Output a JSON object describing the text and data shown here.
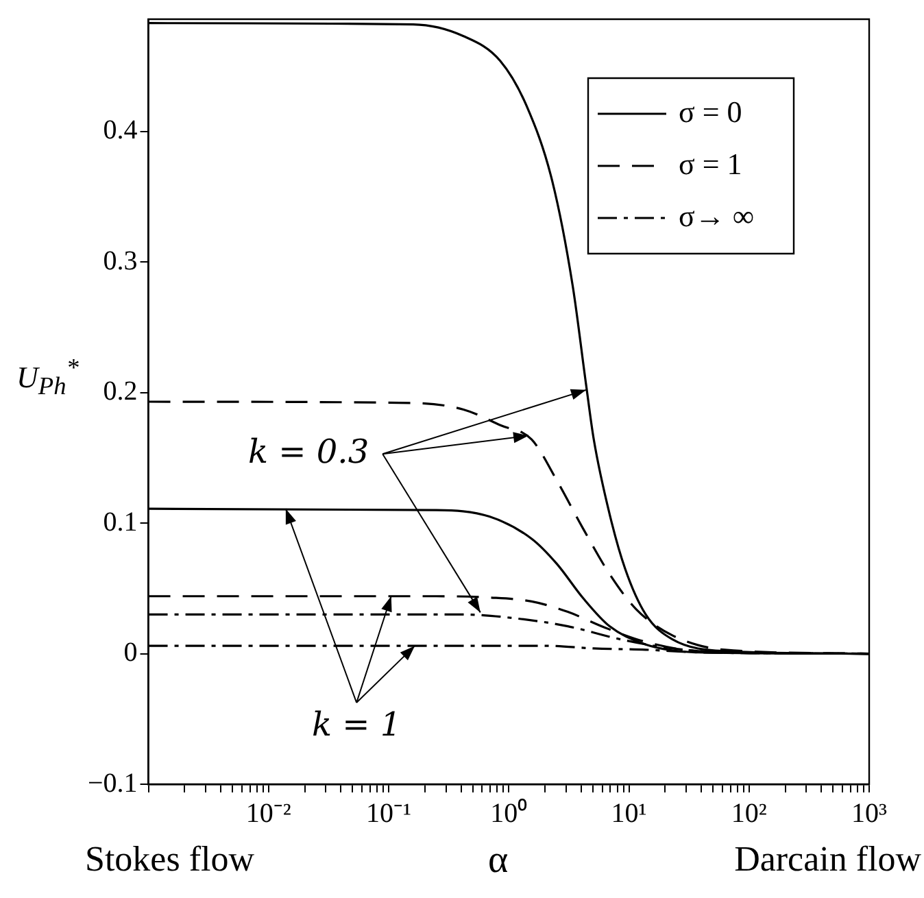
{
  "chart_data": {
    "type": "line",
    "xlabel": "α",
    "ylabel": "U$_{Ph}$$^{*}$",
    "log": "x",
    "xlim": [
      0.001,
      1000
    ],
    "xticks": [
      {
        "value": 0.001,
        "label": null
      },
      {
        "value": 0.002,
        "label": null
      },
      {
        "value": 0.003,
        "label": null
      },
      {
        "value": 0.004,
        "label": null
      },
      {
        "value": 0.005,
        "label": null
      },
      {
        "value": 0.006,
        "label": null
      },
      {
        "value": 0.007,
        "label": null
      },
      {
        "value": 0.008,
        "label": null
      },
      {
        "value": 0.009,
        "label": null
      },
      {
        "value": 0.01,
        "label": "10⁻²"
      },
      {
        "value": 0.02,
        "label": null
      },
      {
        "value": 0.03,
        "label": null
      },
      {
        "value": 0.04,
        "label": null
      },
      {
        "value": 0.05,
        "label": null
      },
      {
        "value": 0.06,
        "label": null
      },
      {
        "value": 0.07,
        "label": null
      },
      {
        "value": 0.08,
        "label": null
      },
      {
        "value": 0.09,
        "label": null
      },
      {
        "value": 0.1,
        "label": "10⁻¹"
      },
      {
        "value": 0.2,
        "label": null
      },
      {
        "value": 0.3,
        "label": null
      },
      {
        "value": 0.4,
        "label": null
      },
      {
        "value": 0.5,
        "label": null
      },
      {
        "value": 0.6,
        "label": null
      },
      {
        "value": 0.7,
        "label": null
      },
      {
        "value": 0.8,
        "label": null
      },
      {
        "value": 0.9,
        "label": null
      },
      {
        "value": 1,
        "label": "10⁰"
      },
      {
        "value": 2,
        "label": null
      },
      {
        "value": 3,
        "label": null
      },
      {
        "value": 4,
        "label": null
      },
      {
        "value": 5,
        "label": null
      },
      {
        "value": 6,
        "label": null
      },
      {
        "value": 7,
        "label": null
      },
      {
        "value": 8,
        "label": null
      },
      {
        "value": 9,
        "label": null
      },
      {
        "value": 10,
        "label": "10¹"
      },
      {
        "value": 20,
        "label": null
      },
      {
        "value": 30,
        "label": null
      },
      {
        "value": 40,
        "label": null
      },
      {
        "value": 50,
        "label": null
      },
      {
        "value": 60,
        "label": null
      },
      {
        "value": 70,
        "label": null
      },
      {
        "value": 80,
        "label": null
      },
      {
        "value": 90,
        "label": null
      },
      {
        "value": 100,
        "label": "10²"
      },
      {
        "value": 200,
        "label": null
      },
      {
        "value": 300,
        "label": null
      },
      {
        "value": 400,
        "label": null
      },
      {
        "value": 500,
        "label": null
      },
      {
        "value": 600,
        "label": null
      },
      {
        "value": 700,
        "label": null
      },
      {
        "value": 800,
        "label": null
      },
      {
        "value": 900,
        "label": null
      },
      {
        "value": 1000,
        "label": "10³"
      }
    ],
    "ylim": [
      -0.1,
      0.486
    ],
    "yticks": [
      -0.1,
      0,
      0.1,
      0.2,
      0.3,
      0.4
    ],
    "grid": false,
    "legend": "top right",
    "marker": "none",
    "series": [
      {
        "name": "σ = 0",
        "color": "#000000",
        "line_style": "solid",
        "x": [
          0.001,
          0.16,
          0.42,
          0.85,
          1.4,
          2.3,
          3.4,
          4.4,
          5.1,
          6.9,
          9.3,
          13.8,
          23,
          63,
          1000
        ],
        "values": [
          0.483,
          0.482,
          0.473,
          0.454,
          0.42,
          0.362,
          0.282,
          0.206,
          0.164,
          0.107,
          0.065,
          0.03,
          0.011,
          0.002,
          0
        ]
      },
      {
        "color": "#000000",
        "line_style": "solid",
        "x": [
          0.001,
          0.25,
          0.69,
          1.55,
          2.5,
          4.2,
          6.9,
          13.8,
          38,
          1000
        ],
        "values": [
          0.111,
          0.11,
          0.105,
          0.088,
          0.069,
          0.042,
          0.021,
          0.007,
          0.001,
          0
        ]
      },
      {
        "name": "σ = 1",
        "color": "#000000",
        "line_style": "dashed",
        "x": [
          0.001,
          0.16,
          0.42,
          0.85,
          1.55,
          2.5,
          4.2,
          6.9,
          11.5,
          23,
          63,
          1000
        ],
        "values": [
          0.193,
          0.192,
          0.187,
          0.175,
          0.164,
          0.133,
          0.095,
          0.061,
          0.034,
          0.014,
          0.003,
          0
        ]
      },
      {
        "color": "#000000",
        "line_style": "dashed",
        "x": [
          0.001,
          0.25,
          0.69,
          1.55,
          3.1,
          6.3,
          13.8,
          38,
          1000
        ],
        "values": [
          0.044,
          0.044,
          0.043,
          0.04,
          0.032,
          0.02,
          0.009,
          0.002,
          0
        ]
      },
      {
        "name": "σ→ ∞",
        "color": "#000000",
        "line_style": "dashdot",
        "x": [
          0.001,
          0.42,
          1.15,
          3.1,
          8.5,
          23,
          100,
          1000
        ],
        "values": [
          0.03,
          0.03,
          0.027,
          0.021,
          0.011,
          0.004,
          0.0005,
          0
        ]
      },
      {
        "color": "#000000",
        "line_style": "dashdot",
        "x": [
          0.001,
          2.1,
          5.1,
          13.8,
          38,
          1000
        ],
        "values": [
          0.006,
          0.006,
          0.004,
          0.003,
          0.001,
          0
        ]
      }
    ],
    "annotations": [
      {
        "text": "k = 0.3",
        "x": 4.4,
        "y": 0.202
      },
      {
        "text": "k = 1",
        "x": 0.0139,
        "y": 0.111
      },
      "Stokes flow",
      "Darcain flow"
    ]
  }
}
